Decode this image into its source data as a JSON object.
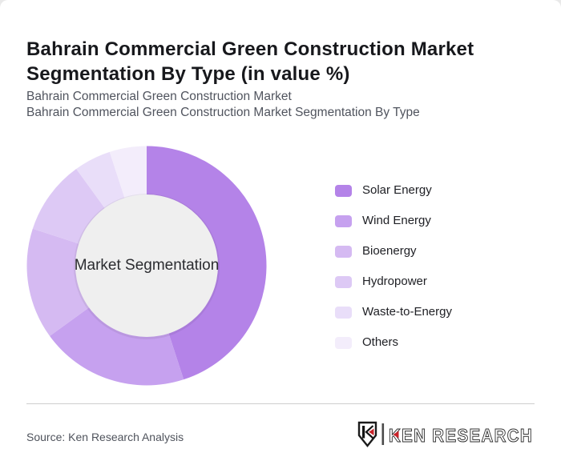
{
  "header": {
    "title": "Bahrain Commercial Green Construction Market Segmentation By Type (in value %)",
    "subtitle_line1": "Bahrain Commercial Green Construction Market",
    "subtitle_line2": "Bahrain Commercial Green Construction Market Segmentation By Type"
  },
  "chart_data": {
    "type": "pie",
    "variant": "donut",
    "title": "Bahrain Commercial Green Construction Market Segmentation By Type (in value %)",
    "center_label": "Market Segmentation",
    "categories": [
      "Solar Energy",
      "Wind Energy",
      "Bioenergy",
      "Hydropower",
      "Waste-to-Energy",
      "Others"
    ],
    "values": [
      45,
      20,
      15,
      10,
      5,
      5
    ],
    "unit": "percent of value",
    "colors": [
      "#b483e8",
      "#c6a1ef",
      "#d5baf2",
      "#ddc9f5",
      "#e9def9",
      "#f3edfb"
    ],
    "inner_circle_color": "#efefef",
    "start_angle_deg": 0,
    "direction": "clockwise",
    "legend_position": "right",
    "data_labels_shown": false
  },
  "footer": {
    "source": "Source: Ken Research Analysis",
    "logo_text": "KEN RESEARCH"
  },
  "colors": {
    "title_text": "#17181c",
    "subtitle_text": "#50545e",
    "divider": "#cecece",
    "logo_red": "#c8232a",
    "logo_dark": "#2e2e2e"
  }
}
